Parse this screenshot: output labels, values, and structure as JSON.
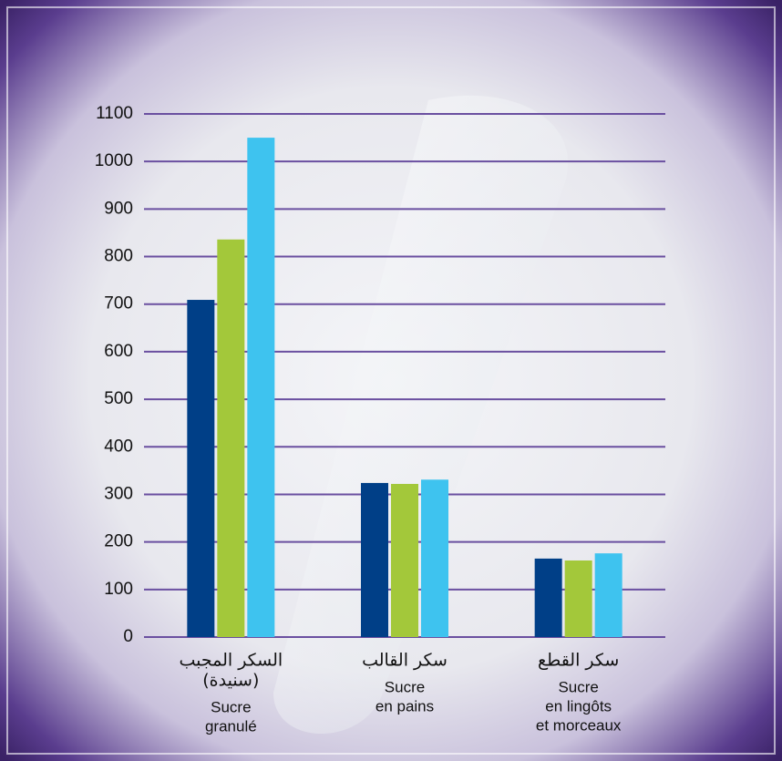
{
  "chart_data": {
    "type": "bar",
    "categories": [
      [
        "السكر المجبب",
        "(سنيدة)",
        "Sucre",
        "granulé"
      ],
      [
        "سكر القالب",
        "Sucre",
        "en pains"
      ],
      [
        "سكر القطع",
        "Sucre",
        "en lingôts",
        "et morceaux"
      ]
    ],
    "series": [
      {
        "color": "#003f87",
        "values": [
          709,
          324,
          165
        ]
      },
      {
        "color": "#a3c83a",
        "values": [
          836,
          322,
          161
        ]
      },
      {
        "color": "#3ec3ef",
        "values": [
          1050,
          331,
          176
        ]
      }
    ],
    "ylim": [
      0,
      1100
    ],
    "yticks": [
      0,
      100,
      200,
      300,
      400,
      500,
      600,
      700,
      800,
      900,
      1000,
      1100
    ],
    "grid": true,
    "grid_color": "#6a4fa0"
  }
}
